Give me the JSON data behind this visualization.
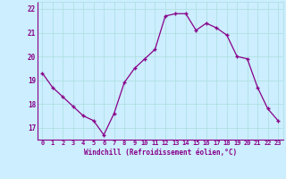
{
  "x": [
    0,
    1,
    2,
    3,
    4,
    5,
    6,
    7,
    8,
    9,
    10,
    11,
    12,
    13,
    14,
    15,
    16,
    17,
    18,
    19,
    20,
    21,
    22,
    23
  ],
  "y": [
    19.3,
    18.7,
    18.3,
    17.9,
    17.5,
    17.3,
    16.7,
    17.6,
    18.9,
    19.5,
    19.9,
    20.3,
    21.7,
    21.8,
    21.8,
    21.1,
    21.4,
    21.2,
    20.9,
    20.0,
    19.9,
    18.7,
    17.8,
    17.3
  ],
  "line_color": "#880088",
  "marker": "+",
  "bg_color": "#cceeff",
  "grid_color": "#aadddd",
  "xlabel": "Windchill (Refroidissement éolien,°C)",
  "xlabel_color": "#880088",
  "tick_color": "#880088",
  "ylim": [
    16.5,
    22.3
  ],
  "xlim": [
    -0.5,
    23.5
  ],
  "yticks": [
    17,
    18,
    19,
    20,
    21,
    22
  ],
  "xticks": [
    0,
    1,
    2,
    3,
    4,
    5,
    6,
    7,
    8,
    9,
    10,
    11,
    12,
    13,
    14,
    15,
    16,
    17,
    18,
    19,
    20,
    21,
    22,
    23
  ],
  "xtick_labels": [
    "0",
    "1",
    "2",
    "3",
    "4",
    "5",
    "6",
    "7",
    "8",
    "9",
    "10",
    "11",
    "12",
    "13",
    "14",
    "15",
    "16",
    "17",
    "18",
    "19",
    "20",
    "21",
    "22",
    "23"
  ]
}
